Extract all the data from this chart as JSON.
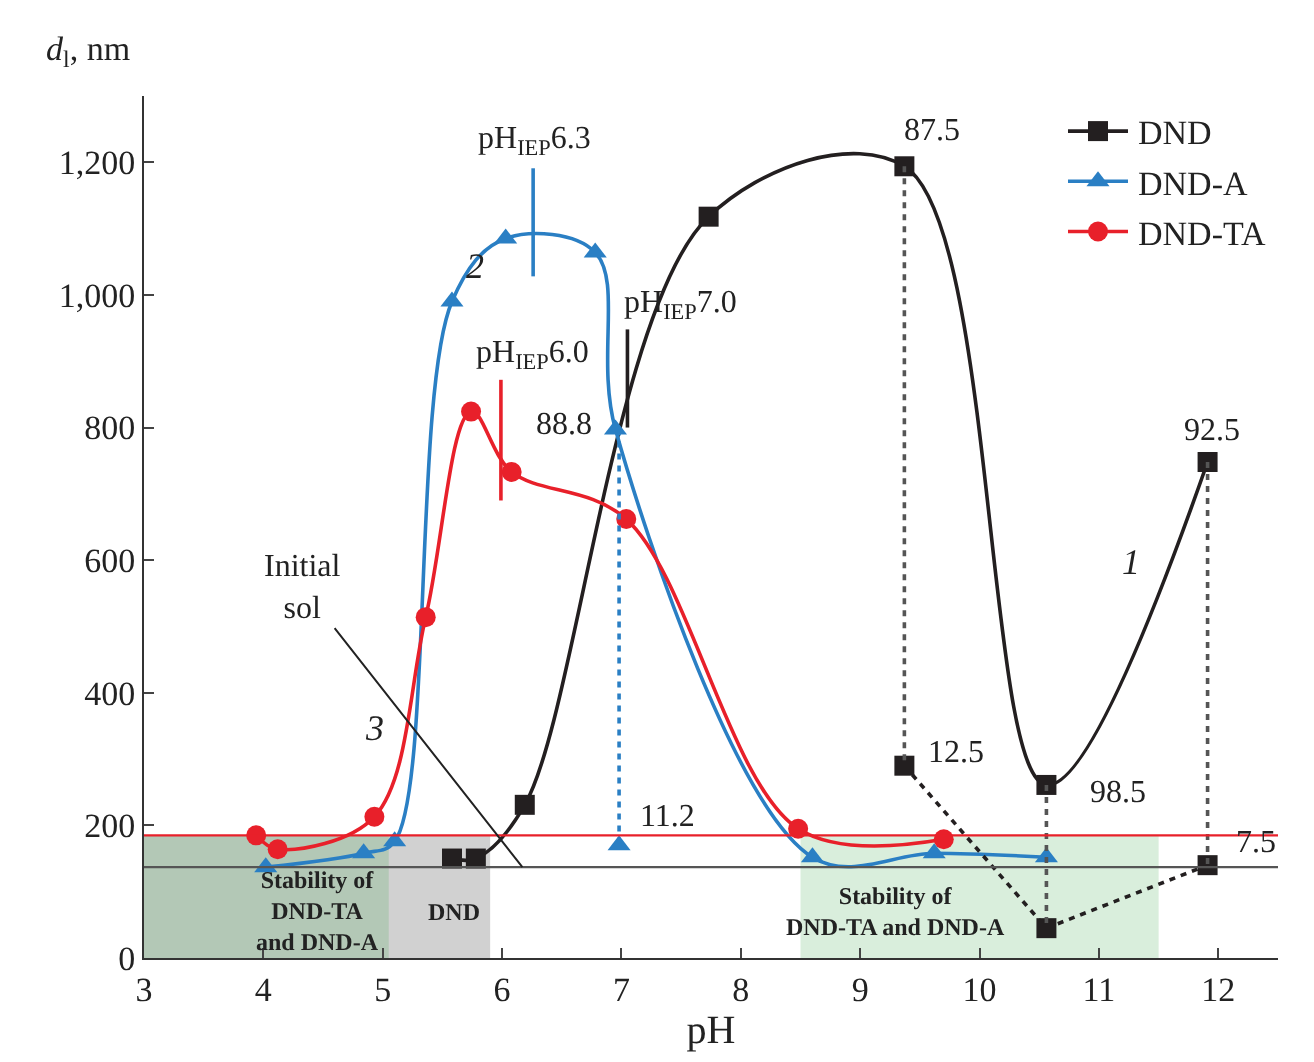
{
  "chart_data": {
    "type": "line",
    "xlabel": "pH",
    "ylabel": "d$_{l}$, nm",
    "xlim": [
      3,
      12.5
    ],
    "xticks": [
      3,
      4,
      5,
      6,
      7,
      8,
      9,
      10,
      11,
      12
    ],
    "ylim": [
      0,
      1300
    ],
    "yticks": [
      0,
      200,
      400,
      600,
      800,
      {
        "value": 1000,
        "label": "1,000"
      },
      {
        "value": 1200,
        "label": "1,200"
      }
    ],
    "grid": false,
    "legend": "top right",
    "series": [
      {
        "name": "DND",
        "color": "#231f20",
        "marker": "square",
        "line_style": "solid",
        "x": [
          5.58,
          5.78,
          6.19,
          7.73,
          9.37,
          10.56,
          11.91
        ],
        "values": [
          150,
          150,
          231,
          1118,
          1194,
          261,
          748
        ]
      },
      {
        "name": "DND-A",
        "color": "#2a7fc4",
        "marker": "triangle",
        "line_style": "solid",
        "x": [
          4.02,
          4.84,
          5.1,
          5.58,
          6.03,
          6.78,
          6.95,
          8.6,
          9.62,
          10.56
        ],
        "values": [
          137,
          158,
          176,
          990,
          1085,
          1064,
          797,
          152,
          158,
          152
        ]
      },
      {
        "name": "DND-TA",
        "color": "#e8202a",
        "marker": "circle",
        "line_style": "solid",
        "x": [
          3.94,
          4.12,
          4.93,
          5.36,
          5.74,
          6.08,
          7.04,
          8.48,
          9.7
        ],
        "values": [
          185,
          164,
          213,
          514,
          824,
          733,
          662,
          195,
          179
        ]
      },
      {
        "type": "line",
        "color": "#231f20",
        "marker": "square",
        "line_style": "dotted",
        "x": [
          9.37,
          10.56,
          11.91
        ],
        "values": [
          290,
          45,
          140
        ]
      },
      {
        "type": "scatter",
        "color": "#2a7fc4",
        "marker": "triangle",
        "x": [
          6.98
        ],
        "values": [
          170
        ]
      },
      {
        "type": "line",
        "color": "#555555",
        "marker": "none",
        "line_style": "dotted",
        "x": [
          9.37,
          9.37
        ],
        "values": [
          1194,
          290
        ]
      },
      {
        "type": "line",
        "color": "#555555",
        "marker": "none",
        "line_style": "dotted",
        "x": [
          10.56,
          10.56
        ],
        "values": [
          261,
          45
        ]
      },
      {
        "type": "line",
        "color": "#555555",
        "marker": "none",
        "line_style": "dotted",
        "x": [
          11.91,
          11.91
        ],
        "values": [
          748,
          140
        ]
      },
      {
        "type": "line",
        "color": "#2a7fc4",
        "marker": "none",
        "line_style": "dotted",
        "x": [
          6.98,
          6.98
        ],
        "values": [
          797,
          170
        ]
      },
      {
        "type": "line",
        "color": "#2a7fc4",
        "marker": "none",
        "line_style": "solid",
        "x": [
          6.26,
          6.26
        ],
        "values": [
          1028,
          1191
        ]
      },
      {
        "type": "line",
        "color": "#e8202a",
        "marker": "none",
        "line_style": "solid",
        "x": [
          5.99,
          5.99
        ],
        "values": [
          690,
          872
        ]
      },
      {
        "type": "line",
        "color": "#231f20",
        "marker": "none",
        "line_style": "solid",
        "x": [
          7.05,
          7.05
        ],
        "values": [
          800,
          948
        ]
      }
    ],
    "ref_lines": [
      {
        "axis": "y",
        "value": 185,
        "color": "#e8202a"
      },
      {
        "axis": "y",
        "value": 137,
        "color": "#555555"
      }
    ],
    "bands": [
      {
        "axis": "x",
        "from": 3,
        "to": 5.9,
        "label": "DND",
        "color": "#000000"
      },
      {
        "axis": "x",
        "from": 3,
        "to": 5.05,
        "label": "Stability of\nDND-TA\nand DND-A",
        "color": "#2e9e3e"
      },
      {
        "axis": "x",
        "from": 8.5,
        "to": 11.5,
        "label": "Stability of\nDND-TA and DND-A",
        "color": "#2e9e3e"
      }
    ],
    "annotations": [
      {
        "text": "pH$_{IEP}$6.3",
        "x": 6.26,
        "y": 1191
      },
      {
        "text": "pH$_{IEP}$6.0",
        "x": 5.99,
        "y": 872
      },
      {
        "text": "pH$_{IEP}$7.0",
        "x": 7.05,
        "y": 948
      },
      {
        "text": "88.8",
        "x": 6.95,
        "y": 797
      },
      {
        "text": "87.5",
        "x": 9.37,
        "y": 1194
      },
      {
        "text": "92.5",
        "x": 11.91,
        "y": 748
      },
      {
        "text": "12.5",
        "x": 9.37,
        "y": 290
      },
      {
        "text": "98.5",
        "x": 10.56,
        "y": 261
      },
      {
        "text": "7.5",
        "x": 11.91,
        "y": 140
      },
      {
        "text": "Initial\nsol",
        "x": 6.17,
        "y": 137
      },
      {
        "text": "11.2",
        "x": 6.98,
        "y": 170
      },
      "1",
      "2",
      "3"
    ]
  }
}
